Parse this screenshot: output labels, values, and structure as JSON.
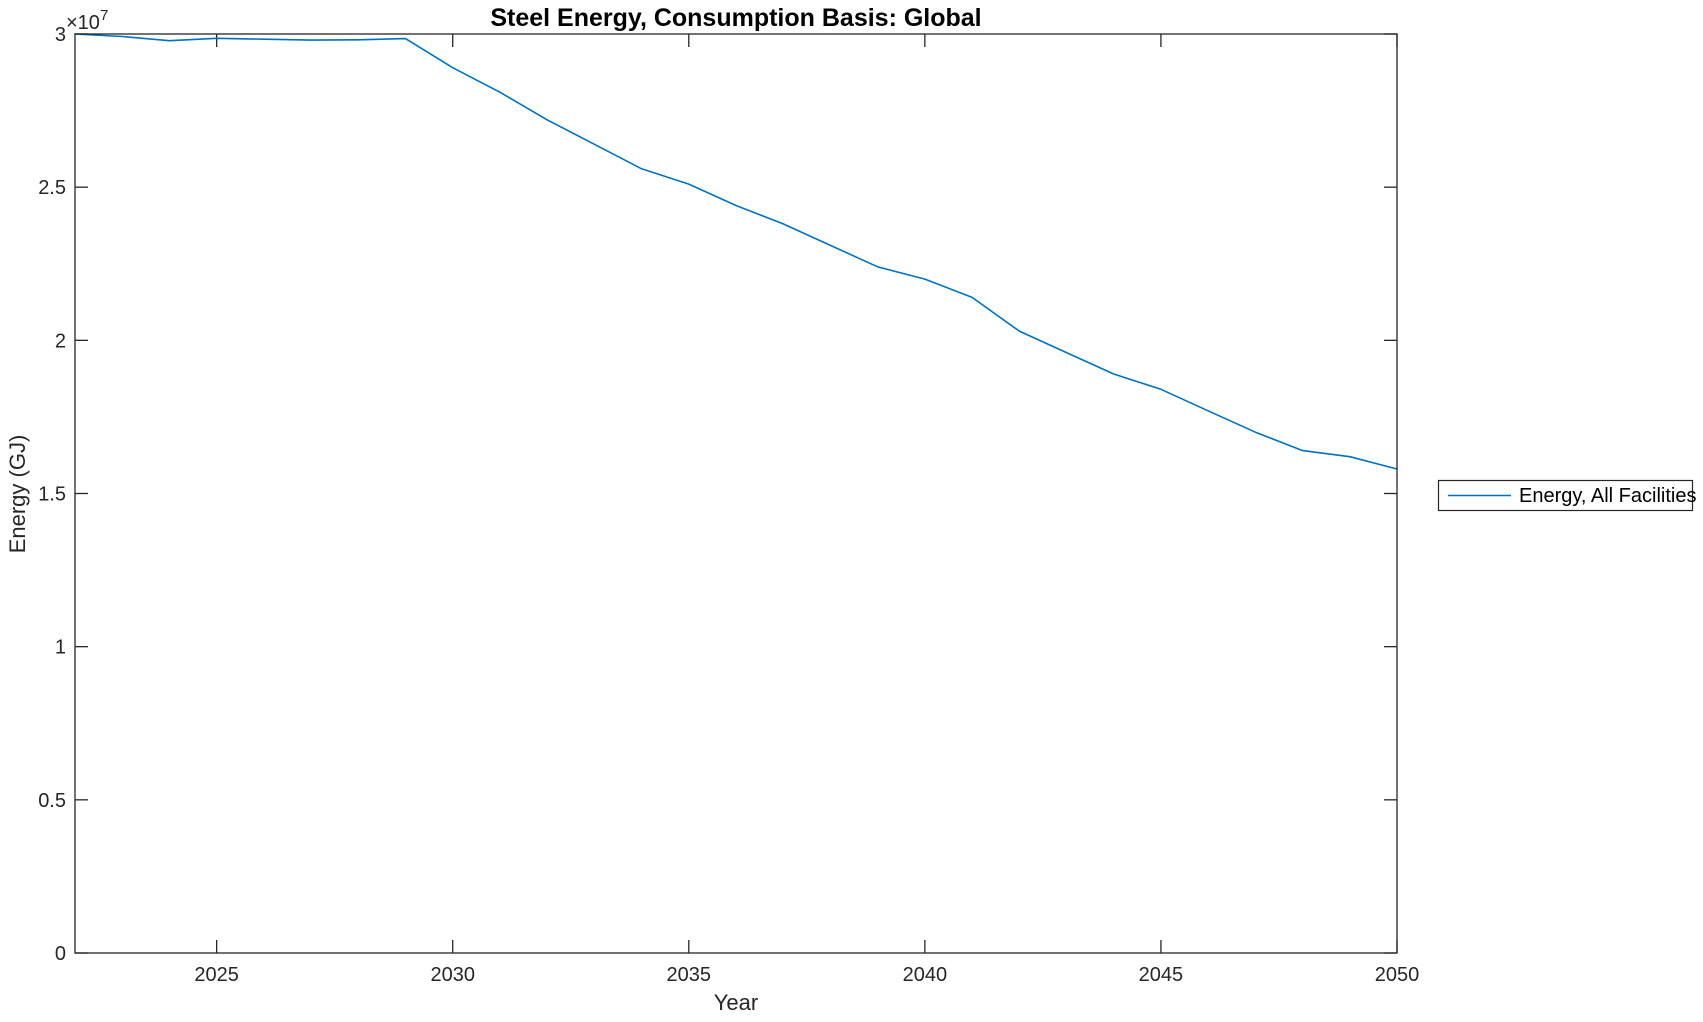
{
  "chart_data": {
    "type": "line",
    "title": "Steel Energy, Consumption Basis: Global",
    "xlabel": "Year",
    "ylabel": "Energy (GJ)",
    "y_offset_text": "×10",
    "y_offset_exponent": "7",
    "y_multiplier": 10000000,
    "xlim": [
      2022,
      2050
    ],
    "ylim": [
      0,
      3
    ],
    "x_ticks": [
      2025,
      2030,
      2035,
      2040,
      2045,
      2050
    ],
    "y_ticks": [
      0,
      0.5,
      1,
      1.5,
      2,
      2.5,
      3
    ],
    "grid": false,
    "x": [
      2022,
      2023,
      2024,
      2025,
      2026,
      2027,
      2028,
      2029,
      2030,
      2031,
      2032,
      2033,
      2034,
      2035,
      2036,
      2037,
      2038,
      2039,
      2040,
      2041,
      2042,
      2043,
      2044,
      2045,
      2046,
      2047,
      2048,
      2049,
      2050
    ],
    "series": [
      {
        "name": "Energy, All Facilities",
        "color": "#0072BD",
        "values": [
          3.0,
          2.992,
          2.978,
          2.986,
          2.983,
          2.98,
          2.981,
          2.985,
          2.89,
          2.81,
          2.72,
          2.64,
          2.56,
          2.51,
          2.44,
          2.38,
          2.31,
          2.24,
          2.2,
          2.14,
          2.03,
          1.96,
          1.89,
          1.84,
          1.77,
          1.7,
          1.64,
          1.62,
          1.58
        ]
      }
    ],
    "legend": {
      "position": "right-outside",
      "entries": [
        "Energy, All Facilities"
      ]
    }
  },
  "colors": {
    "line": "#0072BD",
    "axis": "#262626",
    "background": "#ffffff",
    "legend_border": "#262626"
  }
}
